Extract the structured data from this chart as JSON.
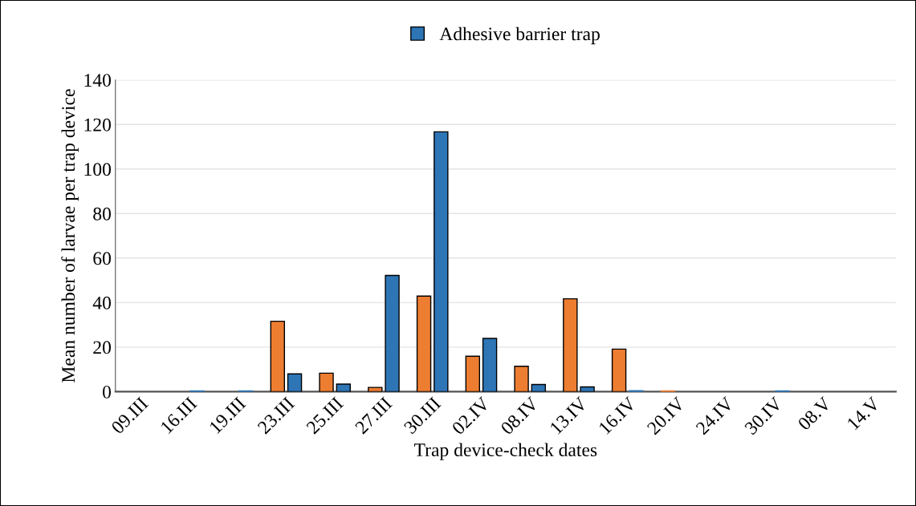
{
  "chart_data": {
    "type": "bar",
    "xlabel": "Trap device-check dates",
    "ylabel": "Mean number of larvae per trap device",
    "categories": [
      "09.III",
      "16.III",
      "19.III",
      "23.III",
      "25.III",
      "27.III",
      "30.III",
      "02.IV",
      "08.IV",
      "13.IV",
      "16.IV",
      "20.IV",
      "24.IV",
      "30.IV",
      "08.V",
      "14.V"
    ],
    "series": [
      {
        "color": "#ed7d31",
        "values": [
          0,
          0,
          0,
          31.6,
          8.3,
          1.9,
          42.9,
          15.9,
          11.4,
          41.7,
          19.1,
          0.3,
          0,
          0,
          0,
          0
        ]
      },
      {
        "name": "Adhesive barrier trap",
        "color": "#2e75b6",
        "values": [
          0,
          0.3,
          0.3,
          8.0,
          3.4,
          52.2,
          116.7,
          23.9,
          3.2,
          2.1,
          0.4,
          0,
          0,
          0.3,
          0,
          0
        ]
      }
    ],
    "ylim": [
      0,
      140
    ],
    "yticks": [
      0,
      20,
      40,
      60,
      80,
      100,
      120,
      140
    ],
    "grid": "y",
    "legend": "top"
  }
}
